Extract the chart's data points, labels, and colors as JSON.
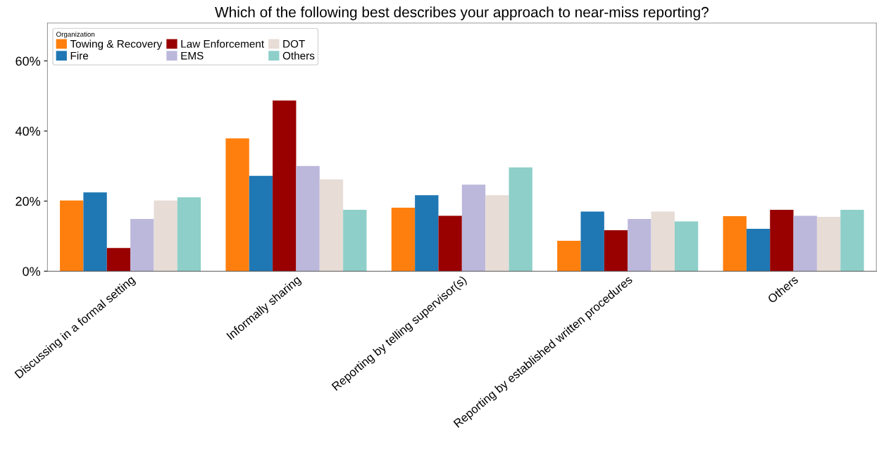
{
  "chart_data": {
    "type": "bar",
    "title": "Which of the following best describes your approach to near-miss reporting?",
    "categories": [
      "Discussing in a formal setting",
      "Informally sharing",
      "Reporting by telling supervisor(s)",
      "Reporting by established written procedures",
      "Others"
    ],
    "series": [
      {
        "name": "Towing & Recovery",
        "color": "#ff7f0e",
        "values": [
          20.2,
          37.9,
          18.1,
          8.7,
          15.7
        ]
      },
      {
        "name": "Fire",
        "color": "#1f77b4",
        "values": [
          22.5,
          27.2,
          21.7,
          17.0,
          12.1
        ]
      },
      {
        "name": "Law Enforcement",
        "color": "#990000",
        "values": [
          6.6,
          48.7,
          15.8,
          11.7,
          17.5
        ]
      },
      {
        "name": "EMS",
        "color": "#bcb8dc",
        "values": [
          14.9,
          30.0,
          24.7,
          14.9,
          15.8
        ]
      },
      {
        "name": "DOT",
        "color": "#e7dcd6",
        "values": [
          20.2,
          26.2,
          21.7,
          17.0,
          15.5
        ]
      },
      {
        "name": "Others",
        "color": "#8ecfc9",
        "values": [
          21.1,
          17.5,
          29.6,
          14.2,
          17.5
        ]
      }
    ],
    "legend_title": "Organization",
    "legend": "top left",
    "grid": false,
    "ylim": [
      0,
      70.8
    ],
    "yticks": [
      {
        "value": 0,
        "label": "0%"
      },
      {
        "value": 20,
        "label": "20%"
      },
      {
        "value": 40,
        "label": "40%"
      },
      {
        "value": 60,
        "label": "60%"
      }
    ]
  }
}
